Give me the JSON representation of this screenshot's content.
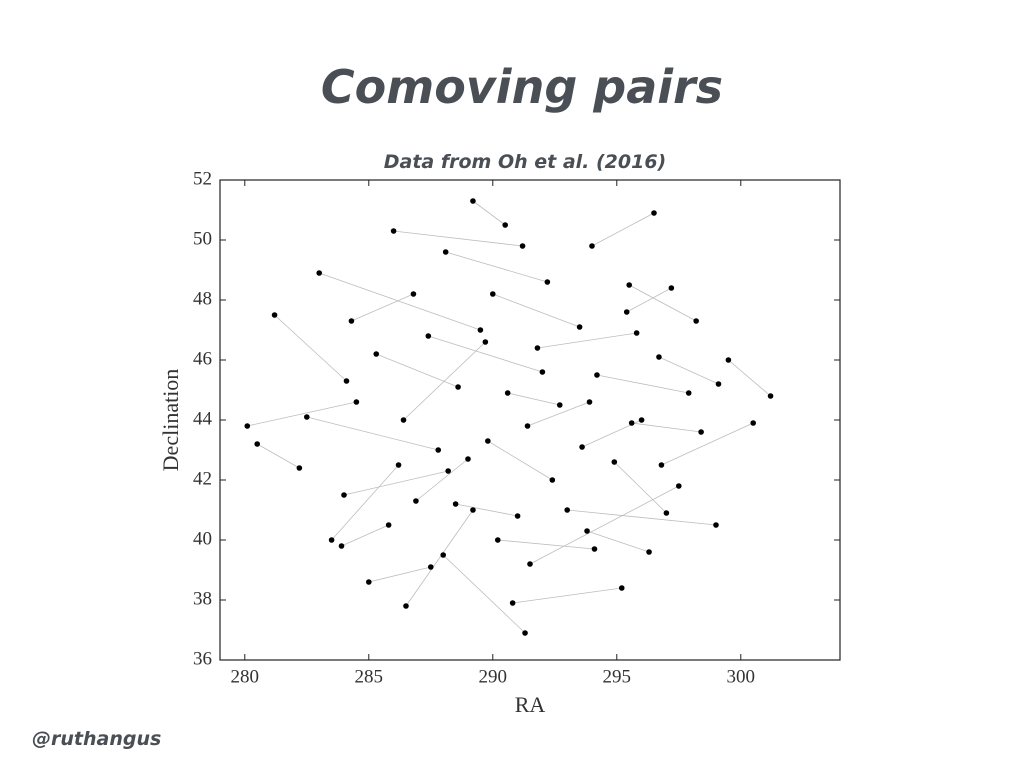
{
  "chart_data": {
    "type": "scatter",
    "title": "Comoving pairs",
    "subtitle": "Data from Oh et al. (2016)",
    "xlabel": "RA",
    "ylabel": "Declination",
    "footer": "@ruthangus",
    "xlim": [
      279,
      304
    ],
    "ylim": [
      36,
      52
    ],
    "xticks": [
      280,
      285,
      290,
      295,
      300
    ],
    "yticks": [
      36,
      38,
      40,
      42,
      44,
      46,
      48,
      50,
      52
    ],
    "color": "#000000",
    "pair_line_color": "#bdbdbd",
    "pair_lines": true,
    "x": [
      281.2,
      284.1,
      283.0,
      289.5,
      286.0,
      291.2,
      289.2,
      290.5,
      294.0,
      296.5,
      295.5,
      298.2,
      299.5,
      301.2,
      300.5,
      296.8,
      299.0,
      293.0,
      297.5,
      291.5,
      295.2,
      290.8,
      291.3,
      288.0,
      286.5,
      289.2,
      285.0,
      287.5,
      283.5,
      286.2,
      282.2,
      280.5,
      280.1,
      284.5,
      282.5,
      287.8,
      285.3,
      288.6,
      287.4,
      292.0,
      290.0,
      293.5,
      291.8,
      295.8,
      294.2,
      297.9,
      296.0,
      293.6,
      292.4,
      289.8,
      288.5,
      291.0,
      290.2,
      294.1,
      293.8,
      296.3,
      297.0,
      294.9,
      292.7,
      290.6,
      289.0,
      286.9,
      285.8,
      283.9,
      284.0,
      288.2,
      286.4,
      289.7,
      284.3,
      286.8,
      288.1,
      292.2,
      295.4,
      297.2,
      296.7,
      299.1,
      298.4,
      295.6,
      293.9,
      291.4
    ],
    "y": [
      47.5,
      45.3,
      48.9,
      47.0,
      50.3,
      49.8,
      51.3,
      50.5,
      49.8,
      50.9,
      48.5,
      47.3,
      46.0,
      44.8,
      43.9,
      42.5,
      40.5,
      41.0,
      41.8,
      39.2,
      38.4,
      37.9,
      36.9,
      39.5,
      37.8,
      41.0,
      38.6,
      39.1,
      40.0,
      42.5,
      42.4,
      43.2,
      43.8,
      44.6,
      44.1,
      43.0,
      46.2,
      45.1,
      46.8,
      45.6,
      48.2,
      47.1,
      46.4,
      46.9,
      45.5,
      44.9,
      44.0,
      43.1,
      42.0,
      43.3,
      41.2,
      40.8,
      40.0,
      39.7,
      40.3,
      39.6,
      40.9,
      42.6,
      44.5,
      44.9,
      42.7,
      41.3,
      40.5,
      39.8,
      41.5,
      42.3,
      44.0,
      46.6,
      47.3,
      48.2,
      49.6,
      48.6,
      47.6,
      48.4,
      46.1,
      45.2,
      43.6,
      43.9,
      44.6,
      43.8
    ]
  }
}
